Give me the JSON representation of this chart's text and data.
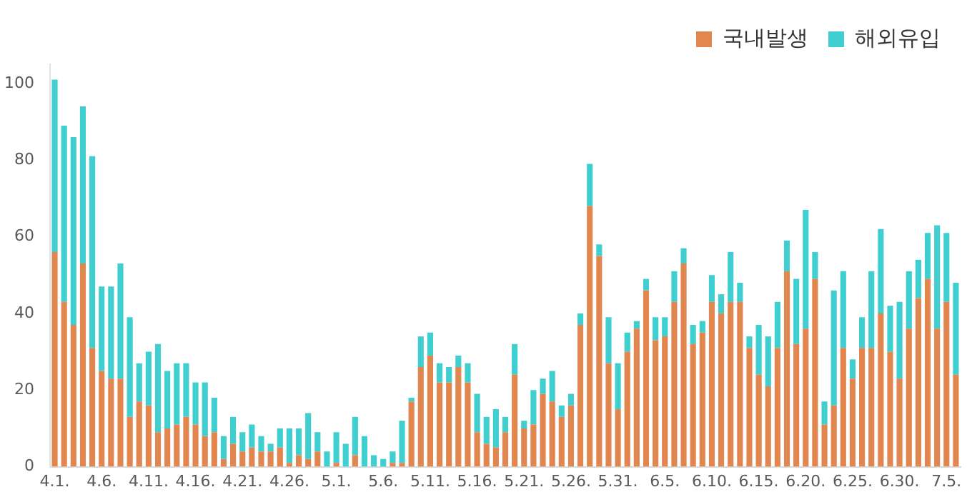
{
  "chart_data": {
    "type": "bar",
    "stacked": true,
    "legend": "top right",
    "grid": false,
    "categories": [
      "4.1.",
      null,
      null,
      null,
      null,
      "4.6.",
      null,
      null,
      null,
      null,
      "4.11.",
      null,
      null,
      null,
      null,
      "4.16.",
      null,
      null,
      null,
      null,
      "4.21.",
      null,
      null,
      null,
      null,
      "4.26.",
      null,
      null,
      null,
      null,
      "5.1.",
      null,
      null,
      null,
      null,
      "5.6.",
      null,
      null,
      null,
      null,
      "5.11.",
      null,
      null,
      null,
      null,
      "5.16.",
      null,
      null,
      null,
      null,
      "5.21.",
      null,
      null,
      null,
      null,
      "5.26.",
      null,
      null,
      null,
      null,
      "5.31.",
      null,
      null,
      null,
      null,
      "6.5.",
      null,
      null,
      null,
      null,
      "6.10.",
      null,
      null,
      null,
      null,
      "6.15.",
      null,
      null,
      null,
      null,
      "6.20.",
      null,
      null,
      null,
      null,
      "6.25.",
      null,
      null,
      null,
      null,
      "6.30.",
      null,
      null,
      null,
      null,
      "7.5.",
      null
    ],
    "ylim": [
      0,
      105
    ],
    "yticks": [
      0,
      20,
      40,
      60,
      80,
      100
    ],
    "series": [
      {
        "name": "국내발생",
        "color": "#e0864e",
        "values": [
          56,
          43,
          37,
          53,
          31,
          25,
          23,
          23,
          13,
          17,
          16,
          9,
          10,
          11,
          13,
          11,
          8,
          9,
          2,
          6,
          4,
          5,
          4,
          4,
          5,
          1,
          3,
          2,
          4,
          0,
          1,
          0,
          3,
          0,
          0,
          0,
          1,
          1,
          17,
          26,
          29,
          22,
          22,
          26,
          22,
          9,
          6,
          5,
          9,
          24,
          10,
          11,
          19,
          17,
          13,
          16,
          37,
          68,
          55,
          27,
          15,
          30,
          36,
          46,
          33,
          34,
          43,
          53,
          32,
          35,
          43,
          40,
          43,
          43,
          31,
          24,
          21,
          31,
          51,
          32,
          36,
          49,
          11,
          16,
          31,
          23,
          31,
          31,
          40,
          30,
          23,
          36,
          44,
          49,
          36,
          43,
          24
        ]
      },
      {
        "name": "해외유입",
        "color": "#3fcfd0",
        "values": [
          45,
          46,
          49,
          41,
          50,
          22,
          24,
          30,
          26,
          10,
          14,
          23,
          15,
          16,
          14,
          11,
          14,
          9,
          6,
          7,
          5,
          6,
          4,
          2,
          5,
          9,
          7,
          12,
          5,
          4,
          8,
          6,
          10,
          8,
          3,
          2,
          3,
          11,
          1,
          8,
          6,
          5,
          4,
          3,
          5,
          10,
          7,
          10,
          4,
          8,
          2,
          9,
          4,
          8,
          3,
          3,
          3,
          11,
          3,
          12,
          12,
          5,
          2,
          3,
          6,
          5,
          8,
          4,
          5,
          3,
          7,
          5,
          13,
          5,
          3,
          13,
          13,
          12,
          8,
          17,
          31,
          7,
          6,
          30,
          20,
          5,
          8,
          20,
          22,
          12,
          20,
          15,
          10,
          12,
          27,
          18,
          24
        ]
      }
    ]
  }
}
